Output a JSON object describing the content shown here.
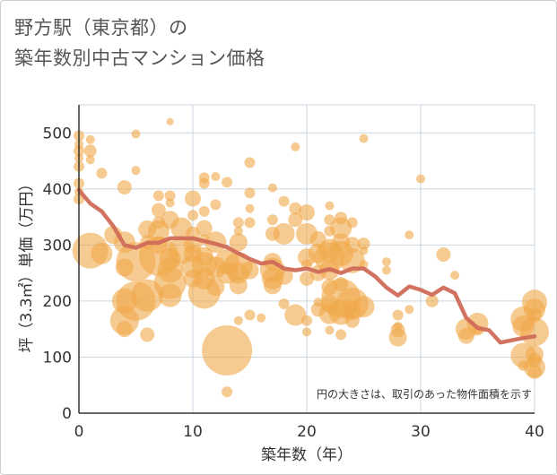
{
  "title_line1": "野方駅（東京都）の",
  "title_line2": "築年数別中古マンション価格",
  "note": "円の大きさは、取引のあった物件面積を示す",
  "colors": {
    "bubble": "#f0a94a",
    "line": "#d06b5a",
    "grid": "#c9d6e0",
    "axis": "#333333"
  },
  "chart_data": {
    "type": "scatter",
    "xlabel": "築年数（年）",
    "ylabel": "坪（3.3㎡）単価（万円）",
    "xlim": [
      0,
      40
    ],
    "ylim": [
      0,
      550
    ],
    "xticks": [
      "0",
      "10",
      "20",
      "30",
      "40"
    ],
    "yticks": [
      "0",
      "100",
      "200",
      "300",
      "400",
      "500"
    ],
    "grid": true,
    "bubbles": [
      [
        0,
        495,
        6
      ],
      [
        0,
        480,
        5
      ],
      [
        0,
        468,
        6
      ],
      [
        0,
        455,
        5
      ],
      [
        0,
        440,
        6
      ],
      [
        0,
        410,
        6
      ],
      [
        0,
        395,
        5
      ],
      [
        0,
        382,
        6
      ],
      [
        1,
        488,
        5
      ],
      [
        1,
        468,
        7
      ],
      [
        1,
        452,
        5
      ],
      [
        2,
        428,
        6
      ],
      [
        1,
        290,
        20
      ],
      [
        2,
        285,
        12
      ],
      [
        4,
        403,
        8
      ],
      [
        3,
        318,
        10
      ],
      [
        4,
        305,
        12
      ],
      [
        5,
        498,
        5
      ],
      [
        5,
        433,
        5
      ],
      [
        4,
        260,
        10
      ],
      [
        4,
        200,
        14
      ],
      [
        5,
        200,
        22
      ],
      [
        4,
        165,
        16
      ],
      [
        4,
        150,
        9
      ],
      [
        6,
        140,
        8
      ],
      [
        5,
        270,
        22
      ],
      [
        6,
        210,
        18
      ],
      [
        6,
        328,
        10
      ],
      [
        6,
        305,
        8
      ],
      [
        7,
        388,
        6
      ],
      [
        7,
        362,
        8
      ],
      [
        7,
        340,
        7
      ],
      [
        7,
        325,
        12
      ],
      [
        7,
        300,
        10
      ],
      [
        8,
        520,
        4
      ],
      [
        8,
        388,
        6
      ],
      [
        8,
        375,
        5
      ],
      [
        8,
        345,
        10
      ],
      [
        7,
        280,
        22
      ],
      [
        8,
        255,
        14
      ],
      [
        8,
        232,
        18
      ],
      [
        8,
        210,
        13
      ],
      [
        9,
        330,
        12
      ],
      [
        9,
        290,
        15
      ],
      [
        8,
        275,
        12
      ],
      [
        10,
        383,
        9
      ],
      [
        10,
        353,
        6
      ],
      [
        10,
        320,
        8
      ],
      [
        10,
        300,
        10
      ],
      [
        10,
        285,
        10
      ],
      [
        10,
        262,
        13
      ],
      [
        10,
        240,
        10
      ],
      [
        11,
        420,
        6
      ],
      [
        11,
        410,
        6
      ],
      [
        12,
        422,
        5
      ],
      [
        11,
        360,
        6
      ],
      [
        11,
        330,
        9
      ],
      [
        11,
        310,
        6
      ],
      [
        11,
        280,
        10
      ],
      [
        11,
        265,
        14
      ],
      [
        11,
        240,
        12
      ],
      [
        11,
        215,
        18
      ],
      [
        12,
        372,
        6
      ],
      [
        12,
        305,
        12
      ],
      [
        12,
        260,
        12
      ],
      [
        12,
        225,
        10
      ],
      [
        13,
        412,
        6
      ],
      [
        13,
        270,
        14
      ],
      [
        13,
        250,
        12
      ],
      [
        13,
        112,
        28
      ],
      [
        13,
        38,
        6
      ],
      [
        14,
        340,
        6
      ],
      [
        14,
        325,
        5
      ],
      [
        14,
        305,
        10
      ],
      [
        14,
        262,
        16
      ],
      [
        14,
        250,
        12
      ],
      [
        14,
        228,
        10
      ],
      [
        14,
        165,
        5
      ],
      [
        15,
        447,
        6
      ],
      [
        15,
        393,
        6
      ],
      [
        15,
        365,
        5
      ],
      [
        15,
        340,
        6
      ],
      [
        15,
        255,
        10
      ],
      [
        15,
        175,
        6
      ],
      [
        16,
        170,
        5
      ],
      [
        17,
        402,
        5
      ],
      [
        17,
        345,
        6
      ],
      [
        17,
        320,
        8
      ],
      [
        17,
        270,
        10
      ],
      [
        17,
        255,
        14
      ],
      [
        17,
        240,
        12
      ],
      [
        17,
        228,
        10
      ],
      [
        18,
        378,
        6
      ],
      [
        18,
        320,
        12
      ],
      [
        18,
        245,
        10
      ],
      [
        18,
        195,
        6
      ],
      [
        19,
        475,
        5
      ],
      [
        19,
        365,
        7
      ],
      [
        19,
        345,
        8
      ],
      [
        19,
        175,
        12
      ],
      [
        20,
        358,
        9
      ],
      [
        20,
        320,
        12
      ],
      [
        20,
        278,
        10
      ],
      [
        20,
        265,
        6
      ],
      [
        20,
        240,
        8
      ],
      [
        20,
        165,
        6
      ],
      [
        20,
        145,
        5
      ],
      [
        21,
        310,
        9
      ],
      [
        21,
        285,
        11
      ],
      [
        21,
        250,
        9
      ],
      [
        21,
        198,
        5
      ],
      [
        21,
        185,
        8
      ],
      [
        22,
        370,
        5
      ],
      [
        22,
        345,
        6
      ],
      [
        22,
        325,
        6
      ],
      [
        22,
        290,
        13
      ],
      [
        22,
        278,
        17
      ],
      [
        22,
        255,
        11
      ],
      [
        22,
        225,
        9
      ],
      [
        22,
        195,
        10
      ],
      [
        22,
        178,
        12
      ],
      [
        22,
        148,
        5
      ],
      [
        23,
        348,
        7
      ],
      [
        23,
        330,
        12
      ],
      [
        23,
        305,
        10
      ],
      [
        23,
        285,
        14
      ],
      [
        23,
        230,
        8
      ],
      [
        23,
        205,
        22
      ],
      [
        23,
        180,
        14
      ],
      [
        23,
        140,
        6
      ],
      [
        24,
        340,
        6
      ],
      [
        24,
        300,
        9
      ],
      [
        24,
        272,
        14
      ],
      [
        24,
        195,
        18
      ],
      [
        24,
        185,
        10
      ],
      [
        24,
        165,
        8
      ],
      [
        25,
        490,
        5
      ],
      [
        25,
        302,
        7
      ],
      [
        25,
        290,
        5
      ],
      [
        25,
        265,
        5
      ],
      [
        25,
        190,
        12
      ],
      [
        27,
        270,
        5
      ],
      [
        27,
        255,
        5
      ],
      [
        28,
        175,
        6
      ],
      [
        28,
        155,
        5
      ],
      [
        28,
        148,
        8
      ],
      [
        28,
        135,
        10
      ],
      [
        29,
        318,
        5
      ],
      [
        29,
        185,
        5
      ],
      [
        30,
        418,
        5
      ],
      [
        31,
        200,
        7
      ],
      [
        32,
        283,
        8
      ],
      [
        33,
        246,
        5
      ],
      [
        34,
        150,
        12
      ],
      [
        34,
        138,
        9
      ],
      [
        35,
        160,
        12
      ],
      [
        35,
        148,
        6
      ],
      [
        39,
        168,
        14
      ],
      [
        39,
        155,
        12
      ],
      [
        39,
        103,
        14
      ],
      [
        39,
        85,
        6
      ],
      [
        40,
        198,
        14
      ],
      [
        40,
        185,
        12
      ],
      [
        40,
        175,
        8
      ],
      [
        40,
        145,
        16
      ],
      [
        40,
        105,
        10
      ],
      [
        40,
        95,
        8
      ],
      [
        40,
        82,
        12
      ],
      [
        40,
        74,
        8
      ]
    ],
    "series": [
      {
        "type": "line",
        "x": [
          0,
          1,
          2,
          3,
          4,
          5,
          6,
          7,
          8,
          9,
          10,
          11,
          12,
          13,
          14,
          15,
          16,
          17,
          18,
          19,
          20,
          21,
          22,
          23,
          24,
          25,
          26,
          27,
          28,
          29,
          30,
          31,
          32,
          33,
          34,
          35,
          36,
          37,
          38,
          39,
          40
        ],
        "y": [
          398,
          374,
          360,
          334,
          300,
          295,
          304,
          304,
          312,
          312,
          312,
          307,
          302,
          296,
          285,
          275,
          267,
          270,
          258,
          255,
          258,
          252,
          257,
          250,
          258,
          258,
          244,
          224,
          210,
          226,
          220,
          211,
          224,
          214,
          170,
          152,
          148,
          126,
          130,
          134,
          137
        ]
      }
    ]
  }
}
